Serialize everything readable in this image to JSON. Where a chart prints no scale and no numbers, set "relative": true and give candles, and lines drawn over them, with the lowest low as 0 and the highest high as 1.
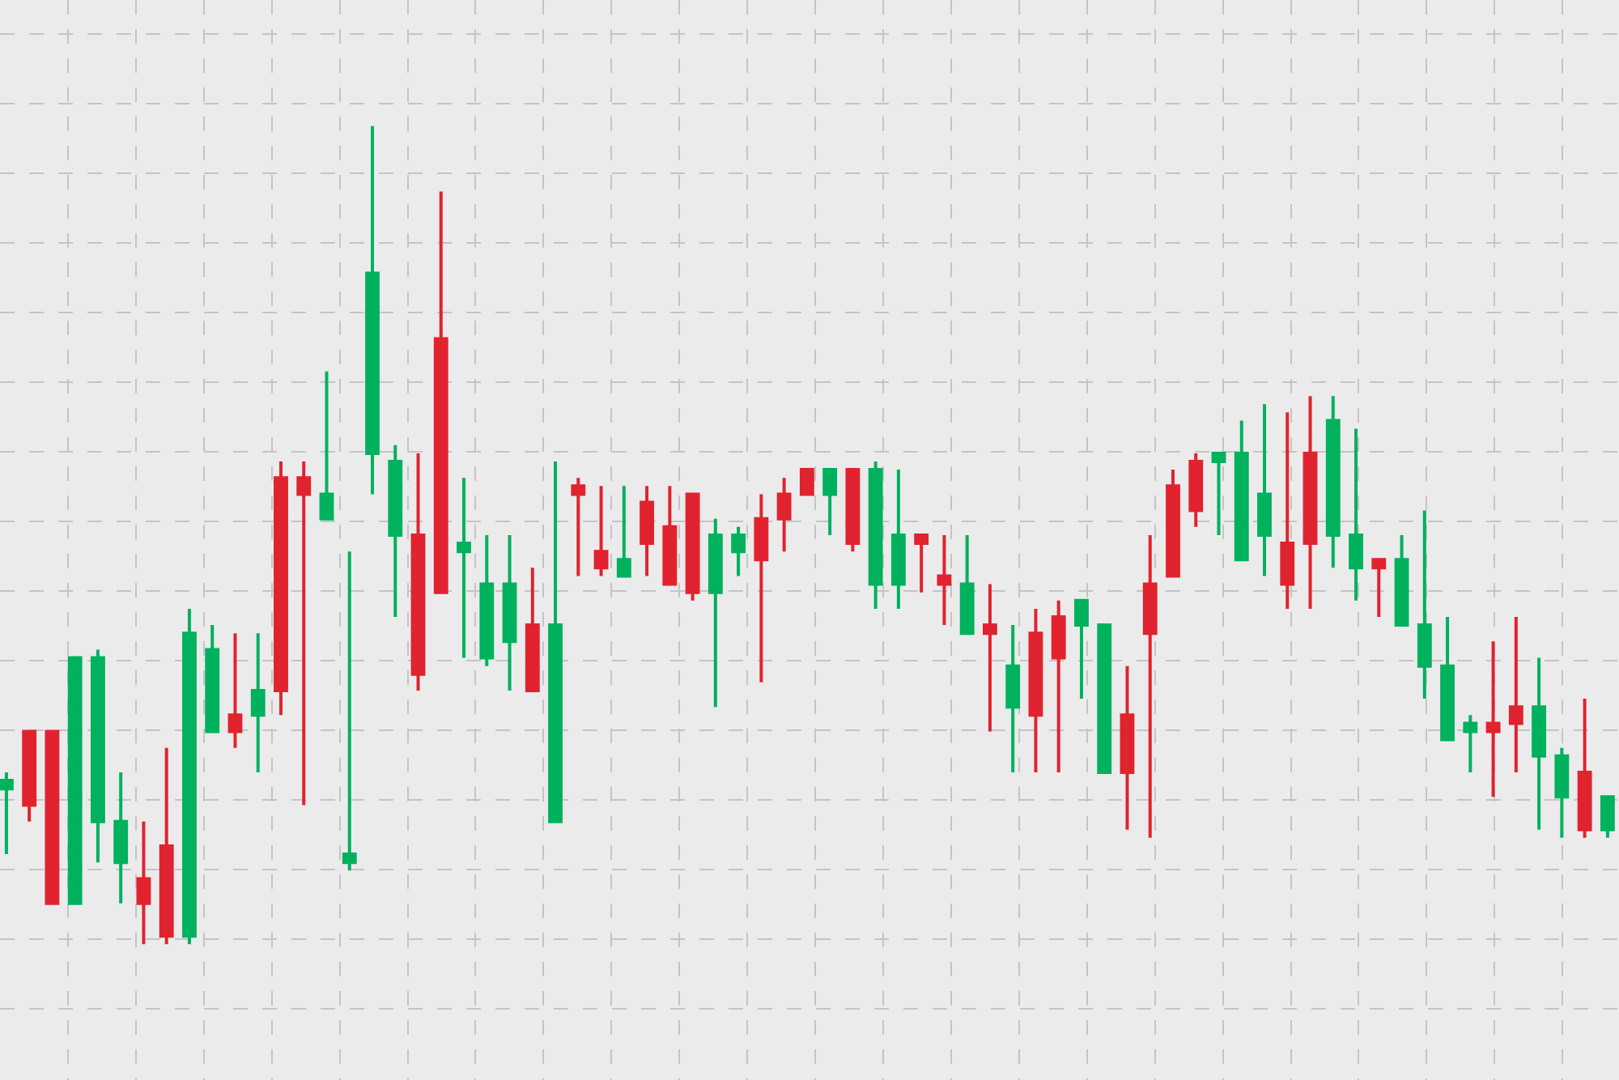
{
  "chart_data": {
    "type": "candlestick",
    "relative": true,
    "grid": true,
    "tick_labels": false,
    "legend": false,
    "categories": [
      null,
      null,
      null,
      null,
      null,
      null,
      null,
      null,
      null,
      null,
      null,
      null,
      null,
      null,
      null,
      null,
      null,
      null,
      null,
      null,
      null,
      null,
      null,
      null,
      null,
      null,
      null,
      null,
      null,
      null,
      null,
      null,
      null,
      null,
      null,
      null,
      null,
      null,
      null,
      null,
      null,
      null,
      null,
      null,
      null,
      null,
      null,
      null,
      null,
      null,
      null,
      null,
      null,
      null,
      null,
      null,
      null,
      null,
      null,
      null,
      null,
      null,
      null,
      null,
      null,
      null,
      null,
      null,
      null,
      null,
      null
    ],
    "ohlc": [
      [
        0.19,
        0.21,
        0.11,
        0.2
      ],
      [
        0.26,
        0.26,
        0.15,
        0.17
      ],
      [
        0.26,
        0.26,
        0.05,
        0.05
      ],
      [
        0.05,
        0.35,
        0.05,
        0.35
      ],
      [
        0.15,
        0.36,
        0.1,
        0.35
      ],
      [
        0.1,
        0.21,
        0.05,
        0.15
      ],
      [
        0.08,
        0.15,
        0.0,
        0.05
      ],
      [
        0.12,
        0.24,
        0.0,
        0.01
      ],
      [
        0.01,
        0.41,
        0.0,
        0.38
      ],
      [
        0.26,
        0.39,
        0.26,
        0.36
      ],
      [
        0.28,
        0.38,
        0.24,
        0.26
      ],
      [
        0.28,
        0.38,
        0.21,
        0.31
      ],
      [
        0.57,
        0.59,
        0.28,
        0.31
      ],
      [
        0.57,
        0.59,
        0.17,
        0.55
      ],
      [
        0.52,
        0.7,
        0.52,
        0.55
      ],
      [
        0.1,
        0.48,
        0.09,
        0.11
      ],
      [
        0.6,
        1.0,
        0.55,
        0.82
      ],
      [
        0.5,
        0.61,
        0.4,
        0.59
      ],
      [
        0.5,
        0.6,
        0.31,
        0.33
      ],
      [
        0.74,
        0.92,
        0.43,
        0.43
      ],
      [
        0.48,
        0.57,
        0.35,
        0.49
      ],
      [
        0.35,
        0.5,
        0.34,
        0.44
      ],
      [
        0.37,
        0.5,
        0.31,
        0.44
      ],
      [
        0.39,
        0.46,
        0.31,
        0.31
      ],
      [
        0.15,
        0.59,
        0.15,
        0.39
      ],
      [
        0.56,
        0.57,
        0.45,
        0.55
      ],
      [
        0.48,
        0.56,
        0.45,
        0.46
      ],
      [
        0.45,
        0.56,
        0.45,
        0.47
      ],
      [
        0.54,
        0.56,
        0.45,
        0.49
      ],
      [
        0.51,
        0.56,
        0.44,
        0.44
      ],
      [
        0.55,
        0.55,
        0.42,
        0.43
      ],
      [
        0.43,
        0.52,
        0.29,
        0.5
      ],
      [
        0.48,
        0.51,
        0.45,
        0.5
      ],
      [
        0.52,
        0.55,
        0.32,
        0.47
      ],
      [
        0.55,
        0.57,
        0.48,
        0.52
      ],
      [
        0.58,
        0.58,
        0.55,
        0.55
      ],
      [
        0.55,
        0.58,
        0.5,
        0.58
      ],
      [
        0.58,
        0.58,
        0.48,
        0.49
      ],
      [
        0.44,
        0.59,
        0.41,
        0.58
      ],
      [
        0.44,
        0.58,
        0.41,
        0.5
      ],
      [
        0.5,
        0.5,
        0.43,
        0.49
      ],
      [
        0.45,
        0.5,
        0.39,
        0.44
      ],
      [
        0.38,
        0.5,
        0.38,
        0.44
      ],
      [
        0.39,
        0.44,
        0.26,
        0.38
      ],
      [
        0.29,
        0.39,
        0.21,
        0.34
      ],
      [
        0.38,
        0.41,
        0.21,
        0.28
      ],
      [
        0.4,
        0.42,
        0.21,
        0.35
      ],
      [
        0.39,
        0.42,
        0.3,
        0.42
      ],
      [
        0.21,
        0.39,
        0.21,
        0.39
      ],
      [
        0.28,
        0.34,
        0.14,
        0.21
      ],
      [
        0.44,
        0.5,
        0.13,
        0.38
      ],
      [
        0.56,
        0.58,
        0.45,
        0.45
      ],
      [
        0.59,
        0.6,
        0.51,
        0.53
      ],
      [
        0.59,
        0.6,
        0.5,
        0.6
      ],
      [
        0.47,
        0.64,
        0.47,
        0.6
      ],
      [
        0.5,
        0.66,
        0.45,
        0.55
      ],
      [
        0.49,
        0.65,
        0.41,
        0.44
      ],
      [
        0.6,
        0.67,
        0.41,
        0.49
      ],
      [
        0.5,
        0.67,
        0.46,
        0.64
      ],
      [
        0.46,
        0.63,
        0.42,
        0.5
      ],
      [
        0.47,
        0.47,
        0.4,
        0.46
      ],
      [
        0.39,
        0.5,
        0.39,
        0.47
      ],
      [
        0.34,
        0.53,
        0.3,
        0.39
      ],
      [
        0.25,
        0.4,
        0.25,
        0.34
      ],
      [
        0.26,
        0.28,
        0.21,
        0.27
      ],
      [
        0.27,
        0.37,
        0.18,
        0.26
      ],
      [
        0.29,
        0.4,
        0.21,
        0.27
      ],
      [
        0.23,
        0.35,
        0.14,
        0.29
      ],
      [
        0.18,
        0.24,
        0.13,
        0.23
      ],
      [
        0.21,
        0.3,
        0.13,
        0.14
      ],
      [
        0.14,
        0.18,
        0.13,
        0.18
      ]
    ],
    "colors": [
      "#00b15d",
      "#e0232e",
      "#e0232e",
      "#00b15d",
      "#00b15d",
      "#00b15d",
      "#e0232e",
      "#e0232e",
      "#00b15d",
      "#00b15d",
      "#e0232e",
      "#00b15d",
      "#e0232e",
      "#e0232e",
      "#00b15d",
      "#00b15d",
      "#00b15d",
      "#00b15d",
      "#e0232e",
      "#e0232e",
      "#00b15d",
      "#00b15d",
      "#00b15d",
      "#e0232e",
      "#00b15d",
      "#e0232e",
      "#e0232e",
      "#00b15d",
      "#e0232e",
      "#e0232e",
      "#e0232e",
      "#00b15d",
      "#00b15d",
      "#e0232e",
      "#e0232e",
      "#e0232e",
      "#00b15d",
      "#e0232e",
      "#00b15d",
      "#00b15d",
      "#e0232e",
      "#e0232e",
      "#00b15d",
      "#e0232e",
      "#00b15d",
      "#e0232e",
      "#e0232e",
      "#00b15d",
      "#00b15d",
      "#e0232e",
      "#e0232e",
      "#e0232e",
      "#e0232e",
      "#00b15d",
      "#00b15d",
      "#00b15d",
      "#e0232e",
      "#e0232e",
      "#00b15d",
      "#00b15d",
      "#e0232e",
      "#00b15d",
      "#00b15d",
      "#00b15d",
      "#00b15d",
      "#e0232e",
      "#e0232e",
      "#00b15d",
      "#00b15d",
      "#e0232e",
      "#00b15d"
    ]
  }
}
